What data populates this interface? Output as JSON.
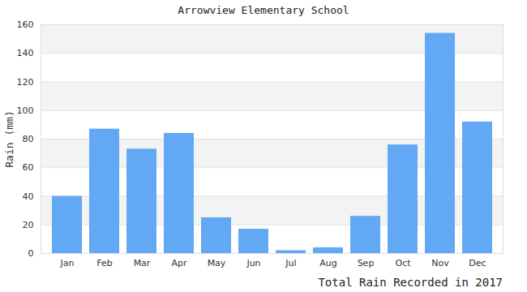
{
  "chart_data": {
    "type": "bar",
    "title": "Arrowview Elementary School",
    "subtitle": "Total Rain Recorded in 2017",
    "y_label": "Rain (mm)",
    "categories": [
      "Jan",
      "Feb",
      "Mar",
      "Apr",
      "May",
      "Jun",
      "Jul",
      "Aug",
      "Sep",
      "Oct",
      "Nov",
      "Dec"
    ],
    "values": [
      40,
      87,
      73,
      84,
      25,
      17,
      2,
      4,
      26,
      76,
      154,
      92
    ],
    "color": "#62a8f5",
    "ylim": [
      0,
      160
    ],
    "yticks": [
      0,
      20,
      40,
      60,
      80,
      100,
      120,
      140,
      160
    ],
    "grid": true
  }
}
